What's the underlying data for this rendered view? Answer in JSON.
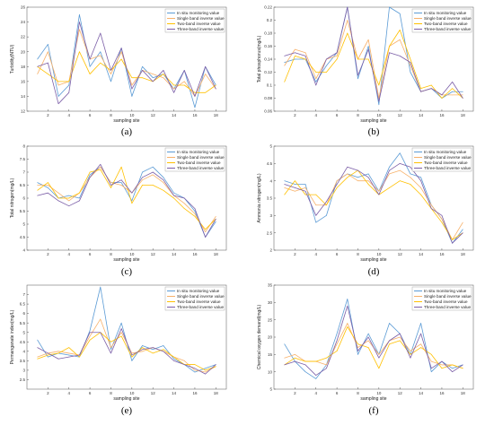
{
  "colors": {
    "in_situ": "#5b9bd5",
    "single": "#f7b16a",
    "two": "#ffc000",
    "three": "#7b5ea7"
  },
  "chart_data": [
    {
      "type": "line",
      "caption": "(a)",
      "xlabel": "sampling site",
      "ylabel": "Turbidity(NTU)",
      "xlim": [
        0,
        19
      ],
      "ylim": [
        12,
        26
      ],
      "x_ticks": [
        2,
        4,
        6,
        8,
        10,
        12,
        14,
        16,
        18
      ],
      "y_ticks": [
        12,
        14,
        16,
        18,
        20,
        22,
        24,
        26
      ],
      "legend_position": "top-right",
      "x": [
        1,
        2,
        3,
        4,
        5,
        6,
        7,
        8,
        9,
        10,
        11,
        12,
        13,
        14,
        15,
        16,
        17,
        18
      ],
      "series": [
        {
          "name": "In situ monitoring value",
          "color_key": "in_situ",
          "values": [
            19.0,
            21.0,
            14.0,
            15.5,
            25.0,
            18.0,
            20.0,
            16.0,
            20.5,
            14.0,
            18.0,
            16.5,
            17.0,
            15.0,
            17.5,
            12.5,
            18.0,
            15.5
          ]
        },
        {
          "name": "Single band inverse value",
          "color_key": "single",
          "values": [
            17.0,
            20.0,
            15.5,
            16.0,
            23.0,
            19.0,
            19.5,
            17.0,
            20.0,
            15.5,
            17.5,
            17.0,
            16.5,
            15.0,
            16.0,
            14.0,
            17.0,
            15.0
          ]
        },
        {
          "name": "Two-band inverse value",
          "color_key": "two",
          "values": [
            18.0,
            17.0,
            16.0,
            16.0,
            20.0,
            17.0,
            18.5,
            17.5,
            19.0,
            16.5,
            16.5,
            16.0,
            17.0,
            15.5,
            15.5,
            14.5,
            14.5,
            15.5
          ]
        },
        {
          "name": "Three-band inverse value",
          "color_key": "three",
          "values": [
            18.0,
            18.5,
            13.0,
            14.5,
            24.0,
            19.0,
            22.5,
            17.5,
            20.5,
            15.0,
            17.5,
            16.0,
            17.5,
            14.5,
            17.5,
            14.0,
            18.0,
            15.0
          ]
        }
      ]
    },
    {
      "type": "line",
      "caption": "(b)",
      "xlabel": "sampling site",
      "ylabel": "Total phosphorus(mg/L)",
      "xlim": [
        0,
        19
      ],
      "ylim": [
        0.06,
        0.22
      ],
      "x_ticks": [
        2,
        4,
        6,
        8,
        10,
        12,
        14,
        16,
        18
      ],
      "y_ticks": [
        0.06,
        0.08,
        0.1,
        0.12,
        0.14,
        0.16,
        0.18,
        0.2,
        0.22
      ],
      "legend_position": "top-right",
      "x": [
        1,
        2,
        3,
        4,
        5,
        6,
        7,
        8,
        9,
        10,
        11,
        12,
        13,
        14,
        15,
        16,
        17,
        18
      ],
      "series": [
        {
          "name": "In situ monitoring value",
          "color_key": "in_situ",
          "values": [
            0.135,
            0.14,
            0.14,
            0.105,
            0.13,
            0.15,
            0.22,
            0.11,
            0.16,
            0.07,
            0.22,
            0.21,
            0.12,
            0.09,
            0.095,
            0.08,
            0.09,
            0.09
          ]
        },
        {
          "name": "Single band inverse value",
          "color_key": "single",
          "values": [
            0.13,
            0.155,
            0.15,
            0.11,
            0.14,
            0.145,
            0.2,
            0.14,
            0.17,
            0.08,
            0.16,
            0.17,
            0.13,
            0.09,
            0.095,
            0.085,
            0.085,
            0.085
          ]
        },
        {
          "name": "Two-band inverse value",
          "color_key": "two",
          "values": [
            0.105,
            0.145,
            0.14,
            0.12,
            0.12,
            0.14,
            0.18,
            0.14,
            0.14,
            0.1,
            0.16,
            0.185,
            0.14,
            0.095,
            0.1,
            0.08,
            0.095,
            0.08
          ]
        },
        {
          "name": "Three-band inverse value",
          "color_key": "three",
          "values": [
            0.145,
            0.15,
            0.145,
            0.1,
            0.14,
            0.15,
            0.22,
            0.115,
            0.155,
            0.075,
            0.15,
            0.145,
            0.135,
            0.09,
            0.095,
            0.085,
            0.105,
            0.08
          ]
        }
      ]
    },
    {
      "type": "line",
      "caption": "(c)",
      "xlabel": "sampling site",
      "ylabel": "Total nitrogen(mg/L)",
      "xlim": [
        0,
        19
      ],
      "ylim": [
        4,
        8
      ],
      "x_ticks": [
        2,
        4,
        6,
        8,
        10,
        12,
        14,
        16,
        18
      ],
      "y_ticks": [
        4,
        4.5,
        5,
        5.5,
        6,
        6.5,
        7,
        7.5,
        8
      ],
      "legend_position": "top-right",
      "x": [
        1,
        2,
        3,
        4,
        5,
        6,
        7,
        8,
        9,
        10,
        11,
        12,
        13,
        14,
        15,
        16,
        17,
        18
      ],
      "series": [
        {
          "name": "In situ monitoring value",
          "color_key": "in_situ",
          "values": [
            6.6,
            6.4,
            6.0,
            6.1,
            6.0,
            6.9,
            7.2,
            6.6,
            6.6,
            5.9,
            7.0,
            7.2,
            6.8,
            6.2,
            6.0,
            5.5,
            4.5,
            5.1
          ]
        },
        {
          "name": "Single band inverse value",
          "color_key": "single",
          "values": [
            6.5,
            6.5,
            6.2,
            5.9,
            6.2,
            6.8,
            7.2,
            6.6,
            6.5,
            6.2,
            6.7,
            6.9,
            6.6,
            6.1,
            5.8,
            5.4,
            4.7,
            5.3
          ]
        },
        {
          "name": "Two-band inverse value",
          "color_key": "two",
          "values": [
            6.3,
            6.6,
            6.0,
            6.0,
            6.2,
            7.0,
            7.1,
            6.4,
            7.2,
            5.8,
            6.5,
            6.5,
            6.3,
            6.0,
            5.6,
            5.3,
            4.8,
            5.2
          ]
        },
        {
          "name": "Three-band inverse value",
          "color_key": "three",
          "values": [
            6.1,
            6.2,
            5.9,
            5.7,
            5.9,
            6.8,
            7.3,
            6.5,
            6.7,
            6.2,
            6.8,
            7.0,
            6.7,
            6.1,
            6.0,
            5.6,
            4.5,
            5.2
          ]
        }
      ]
    },
    {
      "type": "line",
      "caption": "(d)",
      "xlabel": "sampling site",
      "ylabel": "Ammonia nitrogen(mg/L)",
      "xlim": [
        0,
        19
      ],
      "ylim": [
        2,
        5
      ],
      "x_ticks": [
        2,
        4,
        6,
        8,
        10,
        12,
        14,
        16,
        18
      ],
      "y_ticks": [
        2,
        2.5,
        3,
        3.5,
        4,
        4.5,
        5
      ],
      "legend_position": "top-right",
      "x": [
        1,
        2,
        3,
        4,
        5,
        6,
        7,
        8,
        9,
        10,
        11,
        12,
        13,
        14,
        15,
        16,
        17,
        18
      ],
      "series": [
        {
          "name": "In situ monitoring value",
          "color_key": "in_situ",
          "values": [
            4.0,
            3.9,
            3.9,
            2.8,
            3.0,
            4.0,
            4.2,
            4.1,
            4.2,
            3.7,
            4.4,
            4.8,
            4.2,
            4.1,
            3.3,
            2.9,
            2.2,
            2.6
          ]
        },
        {
          "name": "Single band inverse value",
          "color_key": "single",
          "values": [
            3.8,
            3.7,
            3.8,
            3.3,
            3.3,
            4.0,
            4.2,
            4.0,
            4.0,
            3.7,
            4.2,
            4.3,
            4.1,
            3.8,
            3.3,
            2.9,
            2.3,
            2.8
          ]
        },
        {
          "name": "Two-band inverse value",
          "color_key": "two",
          "values": [
            3.6,
            4.0,
            3.6,
            3.6,
            3.3,
            3.8,
            4.1,
            4.3,
            3.9,
            3.6,
            3.8,
            4.0,
            3.9,
            3.6,
            3.2,
            2.8,
            2.3,
            2.5
          ]
        },
        {
          "name": "Three-band inverse value",
          "color_key": "three",
          "values": [
            3.9,
            3.8,
            3.7,
            3.0,
            3.4,
            3.9,
            4.4,
            4.3,
            4.1,
            3.6,
            4.3,
            4.5,
            4.4,
            4.0,
            3.2,
            3.0,
            2.2,
            2.5
          ]
        }
      ]
    },
    {
      "type": "line",
      "caption": "(e)",
      "xlabel": "sampling site",
      "ylabel": "Permanganate index(mg/L)",
      "xlim": [
        0,
        19
      ],
      "ylim": [
        2,
        7.5
      ],
      "x_ticks": [
        2,
        4,
        6,
        8,
        10,
        12,
        14,
        16,
        18
      ],
      "y_ticks": [
        2.5,
        3,
        3.5,
        4,
        4.5,
        5,
        5.5,
        6,
        6.5,
        7
      ],
      "legend_position": "top-right",
      "x": [
        1,
        2,
        3,
        4,
        5,
        6,
        7,
        8,
        9,
        10,
        11,
        12,
        13,
        14,
        15,
        16,
        17,
        18
      ],
      "series": [
        {
          "name": "In situ monitoring value",
          "color_key": "in_situ",
          "values": [
            4.6,
            3.7,
            3.9,
            3.8,
            3.7,
            5.1,
            7.4,
            4.1,
            5.5,
            3.5,
            4.3,
            4.1,
            4.3,
            3.6,
            3.3,
            2.9,
            3.1,
            3.3
          ]
        },
        {
          "name": "Single band inverse value",
          "color_key": "single",
          "values": [
            3.7,
            3.9,
            4.0,
            3.9,
            3.8,
            4.8,
            5.7,
            4.2,
            5.0,
            3.9,
            4.0,
            4.2,
            4.0,
            3.7,
            3.5,
            3.0,
            2.9,
            3.2
          ]
        },
        {
          "name": "Two-band inverse value",
          "color_key": "two",
          "values": [
            3.6,
            3.8,
            3.9,
            4.2,
            3.7,
            4.6,
            5.0,
            4.5,
            4.8,
            3.7,
            4.2,
            3.9,
            4.1,
            3.7,
            3.3,
            3.3,
            3.0,
            3.2
          ]
        },
        {
          "name": "Three-band inverse value",
          "color_key": "three",
          "values": [
            4.2,
            3.9,
            3.6,
            3.7,
            3.8,
            5.0,
            5.0,
            3.9,
            5.2,
            3.8,
            4.1,
            4.2,
            4.0,
            3.5,
            3.3,
            3.1,
            2.8,
            3.3
          ]
        }
      ]
    },
    {
      "type": "line",
      "caption": "(f)",
      "xlabel": "sampling site",
      "ylabel": "Chemical oxygen demand(mg/L)",
      "xlim": [
        0,
        19
      ],
      "ylim": [
        5,
        35
      ],
      "x_ticks": [
        2,
        4,
        6,
        8,
        10,
        12,
        14,
        16,
        18
      ],
      "y_ticks": [
        5,
        10,
        15,
        20,
        25,
        30,
        35
      ],
      "legend_position": "top-right",
      "x": [
        1,
        2,
        3,
        4,
        5,
        6,
        7,
        8,
        9,
        10,
        11,
        12,
        13,
        14,
        15,
        16,
        17,
        18
      ],
      "series": [
        {
          "name": "In situ monitoring value",
          "color_key": "in_situ",
          "values": [
            18.0,
            13.0,
            10.0,
            8.0,
            12.0,
            21.0,
            31.0,
            15.0,
            21.0,
            15.0,
            24.0,
            21.0,
            15.0,
            24.0,
            10.0,
            13.0,
            11.0,
            12.0
          ]
        },
        {
          "name": "Single band inverse value",
          "color_key": "single",
          "values": [
            14.0,
            15.0,
            13.0,
            13.0,
            12.0,
            18.0,
            24.0,
            17.0,
            19.0,
            15.0,
            19.0,
            20.0,
            16.0,
            18.0,
            13.0,
            12.0,
            12.0,
            11.0
          ]
        },
        {
          "name": "Two-band inverse value",
          "color_key": "two",
          "values": [
            12.0,
            14.0,
            13.0,
            13.0,
            14.0,
            16.0,
            23.0,
            18.0,
            17.0,
            11.0,
            18.0,
            19.0,
            15.0,
            17.0,
            15.0,
            11.0,
            12.0,
            11.0
          ]
        },
        {
          "name": "Three-band inverse value",
          "color_key": "three",
          "values": [
            12.0,
            13.0,
            12.0,
            9.0,
            11.0,
            19.0,
            29.0,
            16.0,
            20.0,
            14.0,
            19.0,
            21.0,
            14.0,
            21.0,
            11.0,
            13.0,
            10.0,
            12.0
          ]
        }
      ]
    }
  ]
}
